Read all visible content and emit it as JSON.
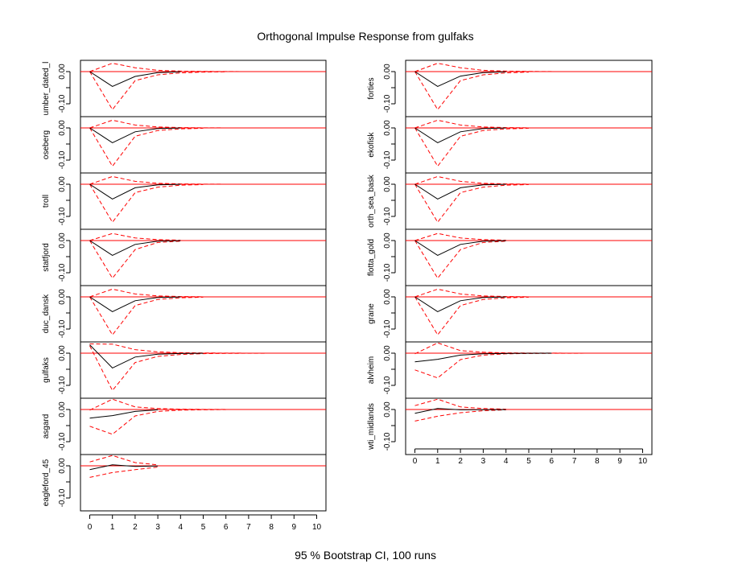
{
  "title": "Orthogonal Impulse Response from gulfaks",
  "footer": "95 % Bootstrap CI,  100 runs",
  "colors": {
    "response": "#000000",
    "ci": "#ff0000",
    "zero_line": "#ff0000"
  },
  "chart_data": {
    "type": "line",
    "impulse": "gulfaks",
    "x": [
      0,
      1,
      2,
      3,
      4,
      5,
      6,
      7,
      8,
      9,
      10
    ],
    "x_ticks": [
      "0",
      "1",
      "2",
      "3",
      "4",
      "5",
      "6",
      "7",
      "8",
      "9",
      "10"
    ],
    "xlim": [
      0,
      10
    ],
    "ylim": [
      -0.14,
      0.035
    ],
    "y_ticks": [
      "0.00",
      "-0.10"
    ],
    "y_ticks_long": [
      "0.00",
      "-0.05",
      "-0.10"
    ],
    "grid": false,
    "legend": "none",
    "panels": [
      {
        "name": "umber_dated_l",
        "column": "left",
        "response": [
          0,
          -0.046,
          -0.015,
          -0.003,
          -0.0005
        ],
        "upper": [
          0,
          0.026,
          0.012,
          0.004,
          0.0015,
          0.0006,
          0.0002,
          0.0001
        ],
        "lower": [
          0,
          -0.118,
          -0.028,
          -0.01,
          -0.004,
          -0.0015,
          -0.0006
        ]
      },
      {
        "name": "oseberg",
        "column": "left",
        "response": [
          0,
          -0.046,
          -0.012,
          -0.002,
          -0.0003
        ],
        "upper": [
          0,
          0.024,
          0.009,
          0.003,
          0.001,
          0.0004,
          0.0001
        ],
        "lower": [
          0,
          -0.119,
          -0.026,
          -0.008,
          -0.003,
          -0.001
        ]
      },
      {
        "name": "troll",
        "column": "left",
        "response": [
          0,
          -0.046,
          -0.011,
          -0.002,
          -0.0003
        ],
        "upper": [
          0,
          0.024,
          0.009,
          0.003,
          0.001,
          0.0004,
          0.0001
        ],
        "lower": [
          0,
          -0.118,
          -0.026,
          -0.009,
          -0.003,
          -0.001
        ]
      },
      {
        "name": "statfjord",
        "column": "left",
        "response": [
          0,
          -0.046,
          -0.012,
          -0.002,
          -0.0003
        ],
        "upper": [
          0,
          0.022,
          0.008,
          0.003,
          0.001
        ],
        "lower": [
          0,
          -0.117,
          -0.028,
          -0.006,
          -0.002
        ]
      },
      {
        "name": "duc_dansk",
        "column": "left",
        "response": [
          0,
          -0.046,
          -0.012,
          -0.002,
          -0.0003
        ],
        "upper": [
          0,
          0.024,
          0.009,
          0.003,
          0.001,
          0.0004
        ],
        "lower": [
          0,
          -0.118,
          -0.027,
          -0.008,
          -0.003,
          -0.001
        ]
      },
      {
        "name": "gulfaks",
        "column": "left",
        "response": [
          0.026,
          -0.046,
          -0.012,
          -0.003,
          -0.001,
          -0.0003
        ],
        "upper": [
          0.029,
          0.028,
          0.011,
          0.004,
          0.0015,
          0.0007,
          0.0003,
          0.0001,
          5e-05,
          2e-05
        ],
        "lower": [
          0.023,
          -0.116,
          -0.029,
          -0.01,
          -0.004,
          -0.0015,
          -0.0007,
          -0.0003,
          -0.0001,
          -5e-05
        ]
      },
      {
        "name": "asgard",
        "column": "left",
        "response": [
          -0.027,
          -0.019,
          -0.006,
          -0.001
        ],
        "upper": [
          -0.002,
          0.032,
          0.008,
          0.003,
          0.001,
          0.0004,
          0.0002
        ],
        "lower": [
          -0.052,
          -0.077,
          -0.02,
          -0.006,
          -0.002,
          -0.001,
          -0.0003
        ]
      },
      {
        "name": "eagleford_45",
        "column": "left",
        "response": [
          -0.012,
          0.003,
          -0.002,
          -0.0005
        ],
        "upper": [
          0.012,
          0.032,
          0.01,
          0.003
        ],
        "lower": [
          -0.036,
          -0.021,
          -0.012,
          -0.004
        ]
      },
      {
        "name": "forties",
        "column": "right",
        "response": [
          0,
          -0.046,
          -0.014,
          -0.003,
          -0.0005
        ],
        "upper": [
          0,
          0.026,
          0.012,
          0.004,
          0.0015,
          0.0006,
          0.0002
        ],
        "lower": [
          0,
          -0.118,
          -0.028,
          -0.01,
          -0.004,
          -0.0015
        ]
      },
      {
        "name": "ekofisk",
        "column": "right",
        "response": [
          0,
          -0.046,
          -0.012,
          -0.002,
          -0.0003
        ],
        "upper": [
          0,
          0.024,
          0.009,
          0.003,
          0.001,
          0.0004
        ],
        "lower": [
          0,
          -0.119,
          -0.026,
          -0.008,
          -0.003,
          -0.001
        ]
      },
      {
        "name": "orth_sea_bask",
        "column": "right",
        "response": [
          0,
          -0.046,
          -0.011,
          -0.002,
          -0.0003
        ],
        "upper": [
          0,
          0.024,
          0.009,
          0.003,
          0.001,
          0.0004
        ],
        "lower": [
          0,
          -0.118,
          -0.026,
          -0.009,
          -0.003,
          -0.001
        ]
      },
      {
        "name": "flotta_gold",
        "column": "right",
        "response": [
          0,
          -0.046,
          -0.012,
          -0.002,
          -0.0003
        ],
        "upper": [
          0,
          0.022,
          0.008,
          0.003,
          0.001
        ],
        "lower": [
          0,
          -0.117,
          -0.028,
          -0.006,
          -0.002
        ]
      },
      {
        "name": "grane",
        "column": "right",
        "response": [
          0,
          -0.046,
          -0.012,
          -0.002,
          -0.0003
        ],
        "upper": [
          0,
          0.024,
          0.009,
          0.003,
          0.001,
          0.0004
        ],
        "lower": [
          0,
          -0.118,
          -0.027,
          -0.008,
          -0.003,
          -0.001
        ]
      },
      {
        "name": "alvheim",
        "column": "right",
        "response": [
          -0.027,
          -0.019,
          -0.006,
          -0.002,
          -0.0008,
          -0.0003,
          -0.0001
        ],
        "upper": [
          -0.002,
          0.032,
          0.008,
          0.003,
          0.001,
          0.0004,
          0.0002,
          0.0001,
          5e-05,
          2e-05
        ],
        "lower": [
          -0.052,
          -0.077,
          -0.02,
          -0.006,
          -0.002,
          -0.001,
          -0.0004,
          -0.0002,
          -0.0001,
          -5e-05
        ]
      },
      {
        "name": "wti_midlands",
        "column": "right",
        "response": [
          -0.012,
          0.003,
          -0.001,
          -0.0005,
          -0.0002
        ],
        "upper": [
          0.012,
          0.032,
          0.008,
          0.003,
          0.001
        ],
        "lower": [
          -0.036,
          -0.021,
          -0.01,
          -0.004,
          -0.001
        ]
      }
    ]
  }
}
